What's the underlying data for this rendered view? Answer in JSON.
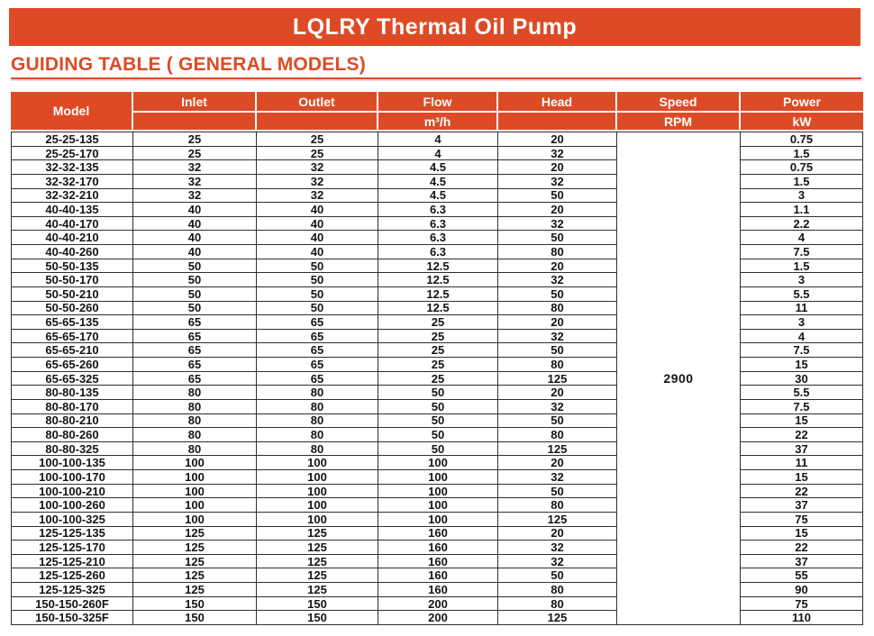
{
  "title": "LQLRY Thermal Oil Pump",
  "section_heading": "GUIDING TABLE ( GENERAL MODELS)",
  "colors": {
    "accent": "#dc4b26"
  },
  "table": {
    "header": {
      "model": "Model",
      "inlet": "Inlet",
      "outlet": "Outlet",
      "flow": "Flow",
      "flow_unit": "m³/h",
      "head": "Head",
      "speed": "Speed",
      "speed_unit": "RPM",
      "power": "Power",
      "power_unit": "kW"
    },
    "speed_value": "2900",
    "rows": [
      {
        "model": "25-25-135",
        "inlet": "25",
        "outlet": "25",
        "flow": "4",
        "head": "20",
        "power": "0.75"
      },
      {
        "model": "25-25-170",
        "inlet": "25",
        "outlet": "25",
        "flow": "4",
        "head": "32",
        "power": "1.5"
      },
      {
        "model": "32-32-135",
        "inlet": "32",
        "outlet": "32",
        "flow": "4.5",
        "head": "20",
        "power": "0.75"
      },
      {
        "model": "32-32-170",
        "inlet": "32",
        "outlet": "32",
        "flow": "4.5",
        "head": "32",
        "power": "1.5"
      },
      {
        "model": "32-32-210",
        "inlet": "32",
        "outlet": "32",
        "flow": "4.5",
        "head": "50",
        "power": "3"
      },
      {
        "model": "40-40-135",
        "inlet": "40",
        "outlet": "40",
        "flow": "6.3",
        "head": "20",
        "power": "1.1"
      },
      {
        "model": "40-40-170",
        "inlet": "40",
        "outlet": "40",
        "flow": "6.3",
        "head": "32",
        "power": "2.2"
      },
      {
        "model": "40-40-210",
        "inlet": "40",
        "outlet": "40",
        "flow": "6.3",
        "head": "50",
        "power": "4"
      },
      {
        "model": "40-40-260",
        "inlet": "40",
        "outlet": "40",
        "flow": "6.3",
        "head": "80",
        "power": "7.5"
      },
      {
        "model": "50-50-135",
        "inlet": "50",
        "outlet": "50",
        "flow": "12.5",
        "head": "20",
        "power": "1.5"
      },
      {
        "model": "50-50-170",
        "inlet": "50",
        "outlet": "50",
        "flow": "12.5",
        "head": "32",
        "power": "3"
      },
      {
        "model": "50-50-210",
        "inlet": "50",
        "outlet": "50",
        "flow": "12.5",
        "head": "50",
        "power": "5.5"
      },
      {
        "model": "50-50-260",
        "inlet": "50",
        "outlet": "50",
        "flow": "12.5",
        "head": "80",
        "power": "11"
      },
      {
        "model": "65-65-135",
        "inlet": "65",
        "outlet": "65",
        "flow": "25",
        "head": "20",
        "power": "3"
      },
      {
        "model": "65-65-170",
        "inlet": "65",
        "outlet": "65",
        "flow": "25",
        "head": "32",
        "power": "4"
      },
      {
        "model": "65-65-210",
        "inlet": "65",
        "outlet": "65",
        "flow": "25",
        "head": "50",
        "power": "7.5"
      },
      {
        "model": "65-65-260",
        "inlet": "65",
        "outlet": "65",
        "flow": "25",
        "head": "80",
        "power": "15"
      },
      {
        "model": "65-65-325",
        "inlet": "65",
        "outlet": "65",
        "flow": "25",
        "head": "125",
        "power": "30"
      },
      {
        "model": "80-80-135",
        "inlet": "80",
        "outlet": "80",
        "flow": "50",
        "head": "20",
        "power": "5.5"
      },
      {
        "model": "80-80-170",
        "inlet": "80",
        "outlet": "80",
        "flow": "50",
        "head": "32",
        "power": "7.5"
      },
      {
        "model": "80-80-210",
        "inlet": "80",
        "outlet": "80",
        "flow": "50",
        "head": "50",
        "power": "15"
      },
      {
        "model": "80-80-260",
        "inlet": "80",
        "outlet": "80",
        "flow": "50",
        "head": "80",
        "power": "22"
      },
      {
        "model": "80-80-325",
        "inlet": "80",
        "outlet": "80",
        "flow": "50",
        "head": "125",
        "power": "37"
      },
      {
        "model": "100-100-135",
        "inlet": "100",
        "outlet": "100",
        "flow": "100",
        "head": "20",
        "power": "11"
      },
      {
        "model": "100-100-170",
        "inlet": "100",
        "outlet": "100",
        "flow": "100",
        "head": "32",
        "power": "15"
      },
      {
        "model": "100-100-210",
        "inlet": "100",
        "outlet": "100",
        "flow": "100",
        "head": "50",
        "power": "22"
      },
      {
        "model": "100-100-260",
        "inlet": "100",
        "outlet": "100",
        "flow": "100",
        "head": "80",
        "power": "37"
      },
      {
        "model": "100-100-325",
        "inlet": "100",
        "outlet": "100",
        "flow": "100",
        "head": "125",
        "power": "75"
      },
      {
        "model": "125-125-135",
        "inlet": "125",
        "outlet": "125",
        "flow": "160",
        "head": "20",
        "power": "15"
      },
      {
        "model": "125-125-170",
        "inlet": "125",
        "outlet": "125",
        "flow": "160",
        "head": "32",
        "power": "22"
      },
      {
        "model": "125-125-210",
        "inlet": "125",
        "outlet": "125",
        "flow": "160",
        "head": "32",
        "power": "37"
      },
      {
        "model": "125-125-260",
        "inlet": "125",
        "outlet": "125",
        "flow": "160",
        "head": "50",
        "power": "55"
      },
      {
        "model": "125-125-325",
        "inlet": "125",
        "outlet": "125",
        "flow": "160",
        "head": "80",
        "power": "90"
      },
      {
        "model": "150-150-260F",
        "inlet": "150",
        "outlet": "150",
        "flow": "200",
        "head": "80",
        "power": "75"
      },
      {
        "model": "150-150-325F",
        "inlet": "150",
        "outlet": "150",
        "flow": "200",
        "head": "125",
        "power": "110"
      }
    ]
  }
}
